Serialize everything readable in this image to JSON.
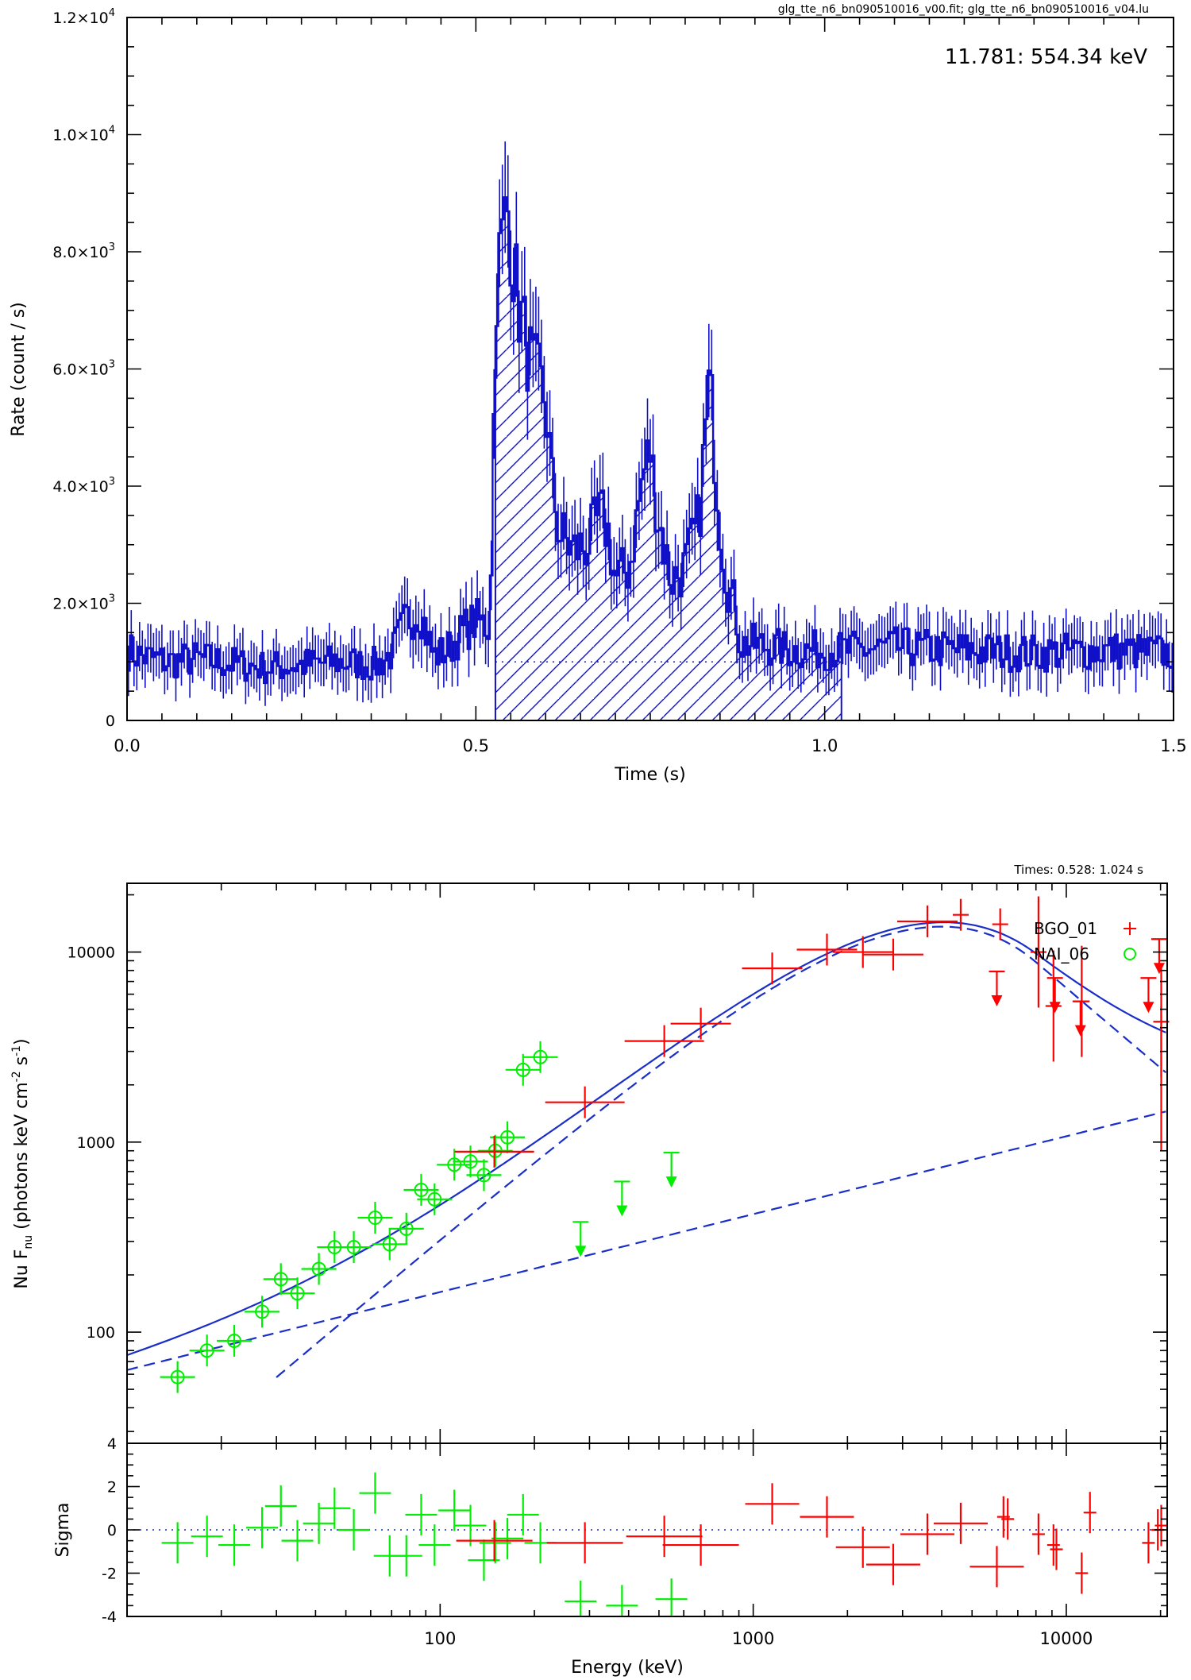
{
  "colors": {
    "lightcurve": "#1010c8",
    "model": "#1a2ec8",
    "bgo": "#ff0000",
    "nai": "#00ee00"
  },
  "chart_data": [
    {
      "type": "line",
      "header": "glg_tte_n6_bn090510016_v00.fit; glg_tte_n6_bn090510016_v04.lu",
      "annotation": "11.781: 554.34 keV",
      "xlabel": "Time (s)",
      "ylabel": "Rate (count / s)",
      "xlim": [
        0,
        1.5
      ],
      "ylim": [
        0,
        12000
      ],
      "xticks": [
        {
          "v": 0,
          "label": "0.0"
        },
        {
          "v": 0.5,
          "label": "0.5"
        },
        {
          "v": 1.0,
          "label": "1.0"
        },
        {
          "v": 1.5,
          "label": "1.5"
        }
      ],
      "yticks": [
        {
          "v": 0,
          "base": "0",
          "exp": ""
        },
        {
          "v": 2000,
          "base": "2.0×10",
          "exp": "3"
        },
        {
          "v": 4000,
          "base": "4.0×10",
          "exp": "3"
        },
        {
          "v": 6000,
          "base": "6.0×10",
          "exp": "3"
        },
        {
          "v": 8000,
          "base": "8.0×10",
          "exp": "3"
        },
        {
          "v": 10000,
          "base": "1.0×10",
          "exp": "4"
        },
        {
          "v": 12000,
          "base": "1.2×10",
          "exp": "4"
        }
      ],
      "background_rate": 1000,
      "selection_interval": [
        0.528,
        1.024
      ],
      "control_points": [
        [
          0,
          1200
        ],
        [
          0.02,
          1100
        ],
        [
          0.06,
          1000
        ],
        [
          0.1,
          1050
        ],
        [
          0.2,
          900
        ],
        [
          0.3,
          1000
        ],
        [
          0.36,
          950
        ],
        [
          0.38,
          1150
        ],
        [
          0.4,
          1700
        ],
        [
          0.42,
          1900
        ],
        [
          0.44,
          1100
        ],
        [
          0.46,
          1200
        ],
        [
          0.48,
          1500
        ],
        [
          0.5,
          1700
        ],
        [
          0.52,
          1600
        ],
        [
          0.53,
          7500
        ],
        [
          0.545,
          8800
        ],
        [
          0.56,
          7200
        ],
        [
          0.58,
          6000
        ],
        [
          0.6,
          5500
        ],
        [
          0.61,
          4000
        ],
        [
          0.62,
          3200
        ],
        [
          0.64,
          2900
        ],
        [
          0.66,
          3000
        ],
        [
          0.68,
          3500
        ],
        [
          0.69,
          3200
        ],
        [
          0.7,
          2400
        ],
        [
          0.72,
          2600
        ],
        [
          0.74,
          4200
        ],
        [
          0.75,
          4600
        ],
        [
          0.76,
          3600
        ],
        [
          0.78,
          2400
        ],
        [
          0.8,
          2600
        ],
        [
          0.82,
          3400
        ],
        [
          0.835,
          5800
        ],
        [
          0.85,
          3400
        ],
        [
          0.86,
          2400
        ],
        [
          0.87,
          2000
        ],
        [
          0.88,
          1300
        ],
        [
          0.9,
          1300
        ],
        [
          0.95,
          1200
        ],
        [
          1.0,
          1200
        ],
        [
          1.05,
          1200
        ],
        [
          1.1,
          1250
        ],
        [
          1.2,
          1200
        ],
        [
          1.3,
          1150
        ],
        [
          1.4,
          1200
        ],
        [
          1.5,
          1150
        ]
      ]
    },
    {
      "type": "scatter",
      "header": "Times: 0.528: 1.024 s",
      "xlabel": "Energy (keV)",
      "ylabel_main": "Nu F",
      "ylabel_sub": "nu",
      "ylabel_rest": " (photons keV cm",
      "ylabel_exp1": "-2",
      "ylabel_mid": " s",
      "ylabel_exp2": "-1",
      "ylabel_end": ")",
      "xscale": "log",
      "yscale": "log",
      "xlim": [
        10,
        21000
      ],
      "ylim": [
        26,
        23000
      ],
      "xticks": [
        {
          "v": 100,
          "label": "100"
        },
        {
          "v": 1000,
          "label": "1000"
        },
        {
          "v": 10000,
          "label": "10000"
        }
      ],
      "yticks": [
        {
          "v": 100,
          "label": "100"
        },
        {
          "v": 1000,
          "label": "1000"
        },
        {
          "v": 10000,
          "label": "10000"
        }
      ],
      "legend": [
        {
          "label": "BGO_01",
          "marker": "+",
          "color": "#ff0000"
        },
        {
          "label": "NAI_06",
          "marker": "o",
          "color": "#00ee00"
        }
      ],
      "nai_points": [
        [
          14.5,
          58
        ],
        [
          18,
          80
        ],
        [
          22,
          90
        ],
        [
          27,
          128
        ],
        [
          31,
          190
        ],
        [
          35,
          160
        ],
        [
          41,
          215
        ],
        [
          46,
          280
        ],
        [
          53,
          280
        ],
        [
          62,
          400
        ],
        [
          69,
          290
        ],
        [
          78,
          350
        ],
        [
          87,
          560
        ],
        [
          96,
          500
        ],
        [
          111,
          760
        ],
        [
          125,
          790
        ],
        [
          138,
          670
        ],
        [
          150,
          900
        ],
        [
          164,
          1060
        ],
        [
          184,
          2400
        ],
        [
          209,
          2800
        ]
      ],
      "nai_upper_limits": [
        [
          281,
          380
        ],
        [
          381,
          620
        ],
        [
          548,
          880
        ]
      ],
      "bgo_points": [
        [
          149,
          890
        ],
        [
          290,
          1620
        ],
        [
          520,
          3400
        ],
        [
          680,
          4200
        ],
        [
          1150,
          8200
        ],
        [
          1720,
          10300
        ],
        [
          2240,
          10000
        ],
        [
          2800,
          9700
        ],
        [
          3600,
          14500
        ],
        [
          4600,
          15700
        ],
        [
          6150,
          14000
        ],
        [
          8150,
          10000
        ],
        [
          9100,
          5200
        ],
        [
          11200,
          5500
        ],
        [
          20100,
          4300
        ]
      ],
      "bgo_upper_limits": [
        [
          6000,
          7900
        ],
        [
          9200,
          7300
        ],
        [
          11100,
          5500
        ],
        [
          18300,
          7300
        ],
        [
          19800,
          11700
        ]
      ],
      "residual_ylabel": "Sigma",
      "residual_ylim": [
        -4,
        4
      ],
      "residual_yticks": [
        {
          "v": -4,
          "label": "-4"
        },
        {
          "v": -2,
          "label": "-2"
        },
        {
          "v": 0,
          "label": "0"
        },
        {
          "v": 2,
          "label": "2"
        },
        {
          "v": 4,
          "label": "4"
        }
      ],
      "nai_residuals": [
        [
          14.5,
          -0.6
        ],
        [
          18,
          -0.3
        ],
        [
          22,
          -0.7
        ],
        [
          27,
          0.1
        ],
        [
          31,
          1.1
        ],
        [
          35,
          -0.5
        ],
        [
          41,
          0.3
        ],
        [
          46,
          1.0
        ],
        [
          53,
          0.0
        ],
        [
          62,
          1.7
        ],
        [
          69,
          -1.2
        ],
        [
          78,
          -1.2
        ],
        [
          87,
          0.7
        ],
        [
          96,
          -0.7
        ],
        [
          111,
          0.9
        ],
        [
          125,
          0.2
        ],
        [
          138,
          -1.4
        ],
        [
          150,
          -0.6
        ],
        [
          164,
          -0.4
        ],
        [
          184,
          0.7
        ],
        [
          209,
          -0.6
        ],
        [
          281,
          -3.3
        ],
        [
          381,
          -3.5
        ],
        [
          548,
          -3.2
        ]
      ],
      "bgo_residuals": [
        [
          149,
          -0.5
        ],
        [
          290,
          -0.6
        ],
        [
          520,
          -0.3
        ],
        [
          680,
          -0.7
        ],
        [
          1150,
          1.2
        ],
        [
          1720,
          0.6
        ],
        [
          2240,
          -0.8
        ],
        [
          2800,
          -1.6
        ],
        [
          3600,
          -0.2
        ],
        [
          4600,
          0.3
        ],
        [
          6000,
          -1.7
        ],
        [
          6300,
          0.6
        ],
        [
          6500,
          0.5
        ],
        [
          8150,
          -0.2
        ],
        [
          9100,
          -0.7
        ],
        [
          9300,
          -0.9
        ],
        [
          11200,
          -2.0
        ],
        [
          11900,
          0.8
        ],
        [
          18300,
          -0.6
        ],
        [
          19600,
          0.0
        ],
        [
          20100,
          0.2
        ]
      ]
    }
  ]
}
